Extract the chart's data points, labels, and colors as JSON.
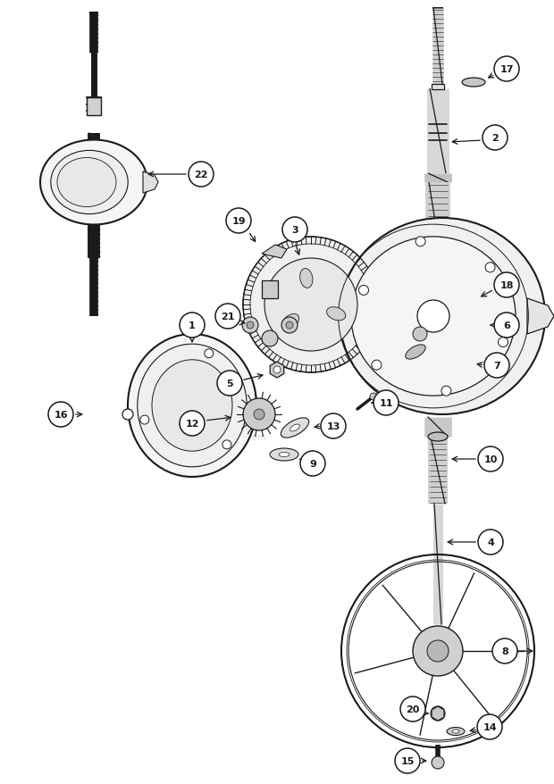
{
  "bg_color": "#ffffff",
  "line_color": "#1a1a1a",
  "fig_width": 6.2,
  "fig_height": 8.79,
  "dpi": 100,
  "watermark": "ereplacementparts.com",
  "label_r": 0.022,
  "label_fontsize": 7.5
}
